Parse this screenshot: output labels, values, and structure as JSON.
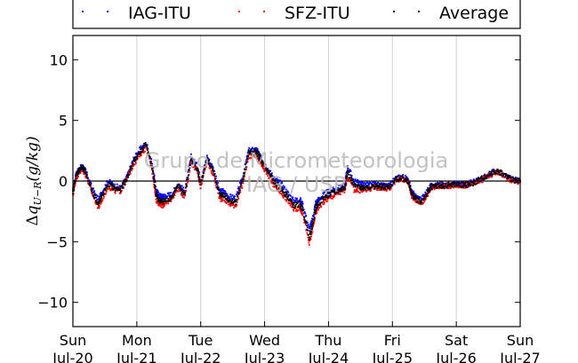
{
  "chart_data": {
    "type": "scatter",
    "ylabel_symbol": "Δ",
    "ylabel_sub": "U−R",
    "ylabel_text": "(g/kg)",
    "ylabel_var": "q",
    "ylim": [
      -12,
      12
    ],
    "yticks": [
      10,
      5,
      0,
      -5,
      -10
    ],
    "ytick_labels": [
      "10",
      "5",
      "0",
      "−5",
      "−10"
    ],
    "xlim": [
      0,
      7
    ],
    "xticks": [
      {
        "x": 0,
        "day": "Sun",
        "date": "Jul-20"
      },
      {
        "x": 1,
        "day": "Mon",
        "date": "Jul-21"
      },
      {
        "x": 2,
        "day": "Tue",
        "date": "Jul-22"
      },
      {
        "x": 3,
        "day": "Wed",
        "date": "Jul-23"
      },
      {
        "x": 4,
        "day": "Thu",
        "date": "Jul-24"
      },
      {
        "x": 5,
        "day": "Fri",
        "date": "Jul-25"
      },
      {
        "x": 6,
        "day": "Sat",
        "date": "Jul-26"
      },
      {
        "x": 7,
        "day": "Sun",
        "date": "Jul-27"
      }
    ],
    "grid": "x-vertical",
    "legend_position": "top",
    "watermark_line1": "Grupo de Micrometeorologia",
    "watermark_line2": "IAG / USP",
    "series": [
      {
        "name": "IAG-ITU",
        "color": "#0000ff",
        "x": [
          0.0,
          0.05,
          0.1,
          0.15,
          0.2,
          0.3,
          0.4,
          0.45,
          0.55,
          0.65,
          0.75,
          0.85,
          0.95,
          1.05,
          1.15,
          1.25,
          1.3,
          1.35,
          1.4,
          1.45,
          1.55,
          1.65,
          1.75,
          1.85,
          1.95,
          2.0,
          2.1,
          2.2,
          2.3,
          2.35,
          2.45,
          2.55,
          2.65,
          2.75,
          2.85,
          2.9,
          2.95,
          3.0,
          3.1,
          3.15,
          3.25,
          3.35,
          3.45,
          3.55,
          3.6,
          3.7,
          3.75,
          3.8,
          3.85,
          3.95,
          4.05,
          4.15,
          4.25,
          4.3,
          4.4,
          4.5,
          4.55,
          4.65,
          4.75,
          4.85,
          4.95,
          5.05,
          5.15,
          5.25,
          5.3,
          5.35,
          5.45,
          5.55,
          5.6,
          5.7,
          5.8,
          5.9,
          6.0,
          6.1,
          6.2,
          6.3,
          6.4,
          6.5,
          6.6,
          6.7,
          6.8,
          6.9,
          7.0
        ],
        "y": [
          -0.8,
          0.6,
          1.0,
          1.2,
          0.8,
          -0.6,
          -1.6,
          -1.0,
          0.0,
          -0.4,
          -0.6,
          0.4,
          1.8,
          2.6,
          3.1,
          1.2,
          -0.7,
          -1.2,
          -1.3,
          -1.2,
          -1.1,
          -0.2,
          -0.9,
          2.0,
          1.2,
          -0.1,
          2.0,
          1.0,
          -0.9,
          -0.8,
          -1.3,
          -1.4,
          0.2,
          2.5,
          2.6,
          2.4,
          1.8,
          1.4,
          0.6,
          0.2,
          -0.2,
          -0.9,
          -1.6,
          -1.5,
          -2.0,
          -4.0,
          -3.2,
          -1.8,
          -1.5,
          -1.0,
          -0.8,
          -0.6,
          -0.4,
          1.2,
          0.0,
          -0.2,
          -0.3,
          -0.3,
          -0.3,
          -0.4,
          -0.4,
          0.2,
          0.4,
          0.1,
          -0.9,
          -1.2,
          -1.5,
          -0.8,
          -0.4,
          -0.3,
          -0.3,
          -0.3,
          -0.2,
          -0.3,
          -0.2,
          0.0,
          0.2,
          0.5,
          0.8,
          0.7,
          0.3,
          0.1,
          0.0
        ]
      },
      {
        "name": "SFZ-ITU",
        "color": "#ff0000",
        "x": [
          0.0,
          0.05,
          0.1,
          0.15,
          0.2,
          0.3,
          0.4,
          0.45,
          0.55,
          0.65,
          0.75,
          0.85,
          0.95,
          1.05,
          1.15,
          1.25,
          1.3,
          1.35,
          1.4,
          1.45,
          1.55,
          1.65,
          1.75,
          1.85,
          1.95,
          2.0,
          2.1,
          2.2,
          2.3,
          2.35,
          2.45,
          2.55,
          2.65,
          2.75,
          2.85,
          2.9,
          2.95,
          3.0,
          3.1,
          3.15,
          3.25,
          3.35,
          3.45,
          3.55,
          3.6,
          3.7,
          3.75,
          3.8,
          3.85,
          3.95,
          4.05,
          4.15,
          4.25,
          4.3,
          4.4,
          4.5,
          4.55,
          4.65,
          4.75,
          4.85,
          4.95,
          5.05,
          5.15,
          5.25,
          5.3,
          5.35,
          5.45,
          5.55,
          5.6,
          5.7,
          5.8,
          5.9,
          6.0,
          6.1,
          6.2,
          6.3,
          6.4,
          6.5,
          6.6,
          6.7,
          6.8,
          6.9,
          7.0
        ],
        "y": [
          -1.2,
          0.3,
          0.7,
          1.0,
          0.5,
          -1.0,
          -2.2,
          -1.6,
          -0.4,
          -0.8,
          -0.8,
          0.2,
          1.4,
          2.2,
          2.8,
          0.6,
          -1.5,
          -1.9,
          -2.0,
          -1.9,
          -1.4,
          -0.6,
          -1.3,
          1.6,
          0.8,
          -0.5,
          1.6,
          0.5,
          -1.5,
          -1.4,
          -1.9,
          -2.0,
          -0.4,
          2.0,
          2.2,
          1.9,
          1.3,
          0.9,
          0.1,
          -0.4,
          -0.9,
          -1.5,
          -2.3,
          -2.2,
          -2.7,
          -5.2,
          -4.0,
          -2.6,
          -2.1,
          -1.6,
          -1.3,
          -1.0,
          -0.8,
          0.4,
          -0.7,
          -0.8,
          -0.7,
          -0.6,
          -0.5,
          -0.6,
          -0.6,
          0.0,
          0.2,
          -0.1,
          -1.2,
          -1.5,
          -1.9,
          -1.1,
          -0.6,
          -0.4,
          -0.4,
          -0.4,
          -0.3,
          -0.4,
          -0.3,
          -0.1,
          0.1,
          0.4,
          0.7,
          0.6,
          0.2,
          0.0,
          -0.1
        ]
      },
      {
        "name": "Average",
        "color": "#000000",
        "x": [
          0.0,
          0.05,
          0.1,
          0.15,
          0.2,
          0.3,
          0.4,
          0.45,
          0.55,
          0.65,
          0.75,
          0.85,
          0.95,
          1.05,
          1.15,
          1.25,
          1.3,
          1.35,
          1.4,
          1.45,
          1.55,
          1.65,
          1.75,
          1.85,
          1.95,
          2.0,
          2.1,
          2.2,
          2.3,
          2.35,
          2.45,
          2.55,
          2.65,
          2.75,
          2.85,
          2.9,
          2.95,
          3.0,
          3.1,
          3.15,
          3.25,
          3.35,
          3.45,
          3.55,
          3.6,
          3.7,
          3.75,
          3.8,
          3.85,
          3.95,
          4.05,
          4.15,
          4.25,
          4.3,
          4.4,
          4.5,
          4.55,
          4.65,
          4.75,
          4.85,
          4.95,
          5.05,
          5.15,
          5.25,
          5.3,
          5.35,
          5.45,
          5.55,
          5.6,
          5.7,
          5.8,
          5.9,
          6.0,
          6.1,
          6.2,
          6.3,
          6.4,
          6.5,
          6.6,
          6.7,
          6.8,
          6.9,
          7.0
        ],
        "y": [
          -1.0,
          0.5,
          0.9,
          1.1,
          0.7,
          -0.8,
          -1.9,
          -1.3,
          -0.2,
          -0.6,
          -0.7,
          0.3,
          1.6,
          2.4,
          3.0,
          0.9,
          -1.1,
          -1.6,
          -1.7,
          -1.6,
          -1.3,
          -0.4,
          -1.1,
          1.8,
          1.0,
          -0.3,
          1.8,
          0.8,
          -1.2,
          -1.1,
          -1.6,
          -1.7,
          -0.1,
          2.3,
          2.4,
          2.2,
          1.6,
          1.2,
          0.4,
          -0.1,
          -0.6,
          -1.2,
          -2.0,
          -1.9,
          -2.4,
          -4.6,
          -3.6,
          -2.2,
          -1.8,
          -1.3,
          -1.0,
          -0.8,
          -0.6,
          0.8,
          -0.4,
          -0.5,
          -0.5,
          -0.5,
          -0.4,
          -0.5,
          -0.5,
          0.1,
          0.3,
          0.0,
          -1.0,
          -1.4,
          -1.7,
          -1.0,
          -0.5,
          -0.4,
          -0.4,
          -0.3,
          -0.3,
          -0.3,
          -0.3,
          -0.1,
          0.2,
          0.5,
          0.8,
          0.7,
          0.3,
          0.1,
          0.0
        ]
      }
    ]
  }
}
